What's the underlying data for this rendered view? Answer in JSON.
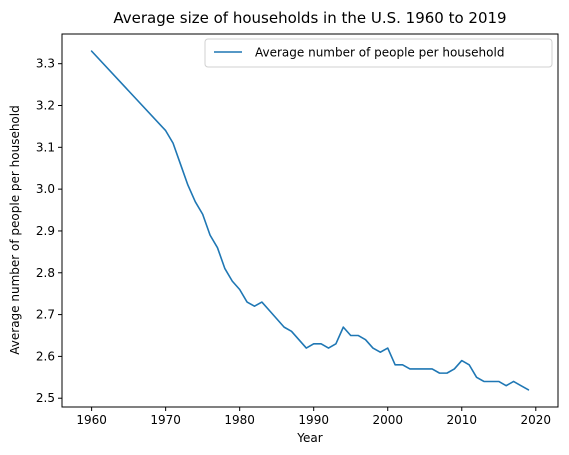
{
  "chart_data": {
    "type": "line",
    "title": "Average size of households in the U.S. 1960 to 2019",
    "xlabel": "Year",
    "ylabel": "Average number of people per household",
    "xlim": [
      1956,
      2023
    ],
    "ylim": [
      2.479,
      3.371
    ],
    "xticks": [
      1960,
      1970,
      1980,
      1990,
      2000,
      2010,
      2020
    ],
    "yticks": [
      2.5,
      2.6,
      2.7,
      2.8,
      2.9,
      3.0,
      3.1,
      3.2,
      3.3
    ],
    "grid": false,
    "legend_position": "top-right",
    "series": [
      {
        "name": "Average number of people per household",
        "color": "#1f77b4",
        "x": [
          1960,
          1970,
          1971,
          1972,
          1973,
          1974,
          1975,
          1976,
          1977,
          1978,
          1979,
          1980,
          1981,
          1982,
          1983,
          1984,
          1985,
          1986,
          1987,
          1988,
          1989,
          1990,
          1991,
          1992,
          1993,
          1994,
          1995,
          1996,
          1997,
          1998,
          1999,
          2000,
          2001,
          2002,
          2003,
          2004,
          2005,
          2006,
          2007,
          2008,
          2009,
          2010,
          2011,
          2012,
          2013,
          2014,
          2015,
          2016,
          2017,
          2018,
          2019
        ],
        "values": [
          3.33,
          3.14,
          3.11,
          3.06,
          3.01,
          2.97,
          2.94,
          2.89,
          2.86,
          2.81,
          2.78,
          2.76,
          2.73,
          2.72,
          2.73,
          2.71,
          2.69,
          2.67,
          2.66,
          2.64,
          2.62,
          2.63,
          2.63,
          2.62,
          2.63,
          2.67,
          2.65,
          2.65,
          2.64,
          2.62,
          2.61,
          2.62,
          2.58,
          2.58,
          2.57,
          2.57,
          2.57,
          2.57,
          2.56,
          2.56,
          2.57,
          2.59,
          2.58,
          2.55,
          2.54,
          2.54,
          2.54,
          2.53,
          2.54,
          2.53,
          2.52
        ]
      }
    ]
  }
}
